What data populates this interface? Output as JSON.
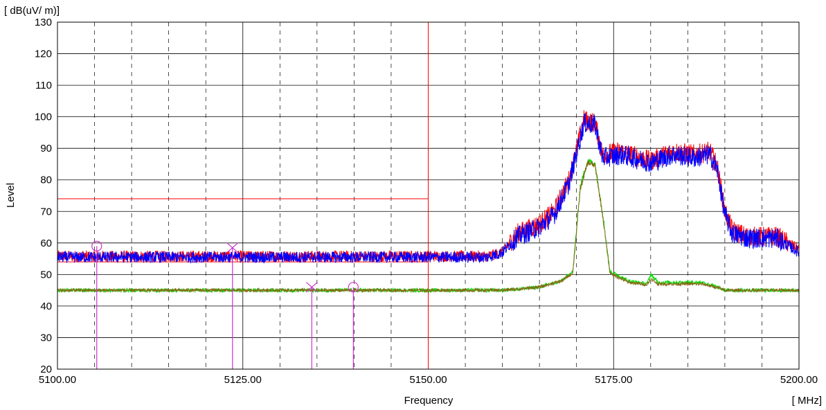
{
  "chart_data": {
    "type": "line",
    "title": "",
    "xlabel": "Frequency",
    "ylabel": "Level",
    "xunit": "[ MHz]",
    "yunit": "[ dB(uV/ m)]",
    "xlim": [
      5100,
      5200
    ],
    "ylim": [
      20,
      130
    ],
    "x_ticks": [
      5100,
      5125,
      5150,
      5175,
      5200
    ],
    "x_tick_labels": [
      "5100.00",
      "5125.00",
      "5150.00",
      "5175.00",
      "5200.00"
    ],
    "y_ticks": [
      20,
      30,
      40,
      50,
      60,
      70,
      80,
      90,
      100,
      110,
      120,
      130
    ],
    "y_tick_labels": [
      "20",
      "30",
      "40",
      "50",
      "60",
      "70",
      "80",
      "90",
      "100",
      "110",
      "120",
      "130"
    ],
    "grid": true,
    "limit_lines": [
      {
        "color": "#ff0000",
        "points": [
          [
            5100,
            74
          ],
          [
            5150,
            74
          ]
        ]
      },
      {
        "color": "#ff0000",
        "points": [
          [
            5100,
            54
          ],
          [
            5150,
            54
          ]
        ]
      },
      {
        "color": "#ff0000",
        "points": [
          [
            5150,
            130
          ],
          [
            5150,
            20
          ]
        ]
      }
    ],
    "series": [
      {
        "color": "#ff0000",
        "noise": 1.8,
        "points": [
          [
            5100,
            55.8
          ],
          [
            5158,
            55.8
          ],
          [
            5160,
            57
          ],
          [
            5162,
            63
          ],
          [
            5165,
            66
          ],
          [
            5167,
            70
          ],
          [
            5169,
            80
          ],
          [
            5171,
            99
          ],
          [
            5172.5,
            98
          ],
          [
            5173.5,
            88
          ],
          [
            5176,
            89
          ],
          [
            5180,
            86
          ],
          [
            5183,
            89
          ],
          [
            5186,
            88
          ],
          [
            5188,
            89
          ],
          [
            5189,
            84
          ],
          [
            5190,
            70
          ],
          [
            5191,
            64
          ],
          [
            5193,
            62
          ],
          [
            5197,
            62
          ],
          [
            5200,
            58
          ]
        ]
      },
      {
        "color": "#0000ff",
        "noise": 1.8,
        "points": [
          [
            5100,
            55.5
          ],
          [
            5158,
            55.5
          ],
          [
            5160,
            57
          ],
          [
            5162,
            62
          ],
          [
            5165,
            65
          ],
          [
            5167,
            69
          ],
          [
            5169,
            79
          ],
          [
            5171,
            98
          ],
          [
            5172.5,
            97.5
          ],
          [
            5173.5,
            87
          ],
          [
            5176,
            88
          ],
          [
            5180,
            85.5
          ],
          [
            5183,
            88
          ],
          [
            5186,
            87
          ],
          [
            5188,
            88
          ],
          [
            5189,
            83
          ],
          [
            5190,
            69
          ],
          [
            5191,
            63
          ],
          [
            5193,
            61.5
          ],
          [
            5197,
            61.5
          ],
          [
            5200,
            57
          ]
        ]
      },
      {
        "color": "#00dd00",
        "noise": 0.6,
        "points": [
          [
            5100,
            45
          ],
          [
            5160,
            45
          ],
          [
            5165,
            46
          ],
          [
            5168,
            48
          ],
          [
            5169.5,
            51
          ],
          [
            5170.5,
            78
          ],
          [
            5171.5,
            86
          ],
          [
            5172.5,
            85
          ],
          [
            5173.5,
            70
          ],
          [
            5174.5,
            51
          ],
          [
            5177,
            48
          ],
          [
            5179.5,
            47
          ],
          [
            5180,
            50
          ],
          [
            5181,
            47.5
          ],
          [
            5187,
            47.5
          ],
          [
            5189,
            46
          ],
          [
            5190,
            45
          ],
          [
            5200,
            45
          ]
        ]
      },
      {
        "color": "#8a6a1a",
        "noise": 0.5,
        "points": [
          [
            5100,
            45
          ],
          [
            5160,
            45
          ],
          [
            5165,
            46
          ],
          [
            5168,
            48
          ],
          [
            5169.5,
            50.5
          ],
          [
            5170.5,
            77
          ],
          [
            5171.5,
            85.5
          ],
          [
            5172.5,
            84.5
          ],
          [
            5173.5,
            69
          ],
          [
            5174.5,
            50.5
          ],
          [
            5177,
            47.5
          ],
          [
            5179.5,
            46.8
          ],
          [
            5180,
            48.5
          ],
          [
            5181,
            47
          ],
          [
            5187,
            47
          ],
          [
            5189,
            45.8
          ],
          [
            5190,
            45
          ],
          [
            5200,
            45
          ]
        ]
      }
    ],
    "markers": [
      {
        "x": 5105.3,
        "y": 59,
        "symbol": "circle",
        "color": "#cc33cc"
      },
      {
        "x": 5123.6,
        "y": 58.5,
        "symbol": "cross",
        "color": "#cc33cc"
      },
      {
        "x": 5134.3,
        "y": 46,
        "symbol": "cross",
        "color": "#cc33cc"
      },
      {
        "x": 5139.9,
        "y": 46,
        "symbol": "circle",
        "color": "#cc33cc"
      }
    ]
  }
}
